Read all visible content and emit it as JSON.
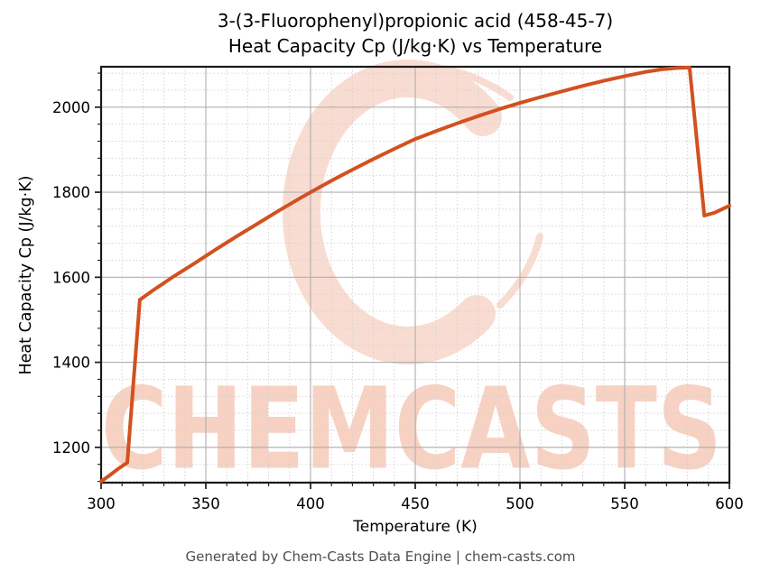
{
  "chart": {
    "title_line1": "3-(3-Fluorophenyl)propionic acid (458-45-7)",
    "title_line2": "Heat Capacity Cp (J/kg·K) vs Temperature",
    "xlabel": "Temperature (K)",
    "ylabel": "Heat Capacity Cp (J/kg·K)"
  },
  "watermark": {
    "text": "CHEMCASTS",
    "text_color": "#f7d2c3",
    "ring_color": "#f9dcd1"
  },
  "footer": {
    "text": "Generated by Chem-Casts Data Engine | chem-casts.com"
  },
  "chart_data": {
    "type": "line",
    "title": "3-(3-Fluorophenyl)propionic acid (458-45-7) Heat Capacity Cp (J/kg·K) vs Temperature",
    "xlabel": "Temperature (K)",
    "ylabel": "Heat Capacity Cp (J/kg·K)",
    "xlim": [
      300,
      600
    ],
    "ylim": [
      1117,
      2095
    ],
    "x_major_ticks": [
      300,
      350,
      400,
      450,
      500,
      550,
      600
    ],
    "y_major_ticks": [
      1200,
      1400,
      1600,
      1800,
      2000
    ],
    "x_minor_step": 10,
    "y_minor_step": 40,
    "grid": true,
    "legend": false,
    "line_color": "#d2511f",
    "line_width": 4,
    "major_grid_color": "#b0b0b0",
    "minor_grid_color": "#d0d0d0",
    "spine_color": "#1a1a1a",
    "series": [
      {
        "name": "Heat Capacity Cp",
        "data": [
          [
            300,
            1120
          ],
          [
            304,
            1134
          ],
          [
            308,
            1149
          ],
          [
            312.5,
            1164
          ],
          [
            318.5,
            1547
          ],
          [
            325,
            1570
          ],
          [
            335,
            1603
          ],
          [
            345,
            1634
          ],
          [
            355,
            1666
          ],
          [
            365,
            1697
          ],
          [
            375,
            1727
          ],
          [
            385,
            1757
          ],
          [
            395,
            1786
          ],
          [
            400,
            1800
          ],
          [
            410,
            1827
          ],
          [
            420,
            1853
          ],
          [
            430,
            1878
          ],
          [
            440,
            1902
          ],
          [
            450,
            1925
          ],
          [
            460,
            1944
          ],
          [
            470,
            1962
          ],
          [
            480,
            1979
          ],
          [
            490,
            1995
          ],
          [
            500,
            2010
          ],
          [
            510,
            2024
          ],
          [
            520,
            2037
          ],
          [
            530,
            2050
          ],
          [
            540,
            2062
          ],
          [
            550,
            2073
          ],
          [
            560,
            2083
          ],
          [
            568,
            2089
          ],
          [
            575,
            2092
          ],
          [
            581,
            2093
          ],
          [
            588,
            1745
          ],
          [
            593,
            1752
          ],
          [
            600,
            1768
          ]
        ]
      }
    ]
  }
}
